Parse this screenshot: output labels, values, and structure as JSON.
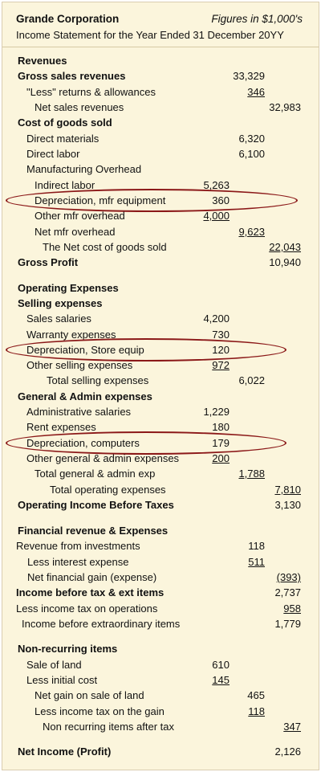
{
  "header": {
    "company": "Grande Corporation",
    "figures_note": "Figures in $1,000's",
    "title": "Income Statement for the Year Ended 31 December 20YY"
  },
  "rows": [
    {
      "label": "Revenues",
      "bold": true,
      "indent": 0
    },
    {
      "label": "Gross sales revenues",
      "bold": true,
      "indent": 0,
      "c2": "33,329"
    },
    {
      "label": "\"Less\" returns & allowances",
      "indent": 1,
      "c2": "346",
      "c2_underline": true
    },
    {
      "label": "Net sales revenues",
      "indent": 2,
      "c3": "32,983"
    },
    {
      "label": "Cost of goods sold",
      "bold": true,
      "indent": 0
    },
    {
      "label": "Direct materials",
      "indent": 1,
      "c2": "6,320"
    },
    {
      "label": "Direct labor",
      "indent": 1,
      "c2": "6,100"
    },
    {
      "label": "Manufacturing Overhead",
      "indent": 1
    },
    {
      "label": "Indirect labor",
      "indent": 2,
      "c1": "5,263"
    },
    {
      "label": "Depreciation, mfr equipment",
      "indent": 2,
      "c1": "360",
      "circled": true
    },
    {
      "label": "Other mfr overhead",
      "indent": 2,
      "c1": "4,000",
      "c1_underline": true
    },
    {
      "label": "Net mfr overhead",
      "indent": 2,
      "c2": "9,623",
      "c2_underline": true
    },
    {
      "label": "The Net cost of goods sold",
      "indent": 3,
      "c3": "22,043",
      "c3_underline": true
    },
    {
      "label": "Gross Profit",
      "bold": true,
      "indent": 0,
      "c3": "10,940"
    },
    {
      "label": "Operating Expenses",
      "bold": true,
      "indent": 0
    },
    {
      "label": "Selling expenses",
      "bold": true,
      "indent": 0
    },
    {
      "label": "Sales salaries",
      "indent": 1,
      "c1": "4,200"
    },
    {
      "label": "Warranty expenses",
      "indent": 1,
      "c1": "730"
    },
    {
      "label": "Depreciation, Store equip",
      "indent": 1,
      "c1": "120",
      "circled": true
    },
    {
      "label": "Other selling expenses",
      "indent": 1,
      "c1": "972",
      "c1_underline": true
    },
    {
      "label": "Total selling expenses",
      "indent": 4,
      "c2": "6,022"
    },
    {
      "label": "General & Admin expenses",
      "bold": true,
      "indent": 0
    },
    {
      "label": "Administrative salaries",
      "indent": 1,
      "c1": "1,229"
    },
    {
      "label": "Rent expenses",
      "indent": 1,
      "c1": "180"
    },
    {
      "label": "Depreciation, computers",
      "indent": 1,
      "c1": "179",
      "circled": true
    },
    {
      "label": "Other general & admin expenses",
      "indent": 1,
      "c1": "200",
      "c1_underline": true
    },
    {
      "label": "Total general & admin exp",
      "indent": 2,
      "c2": "1,788",
      "c2_underline": true
    },
    {
      "label": "Total operating expenses",
      "indent": 5,
      "c3": "7,810",
      "c3_underline": true
    },
    {
      "label": "Operating Income Before Taxes",
      "bold": true,
      "indent": 0,
      "c3": "3,130"
    },
    {
      "label": "Financial revenue & Expenses",
      "bold": true,
      "indent": 0
    },
    {
      "label": "Revenue from investments",
      "indent": 6,
      "c2": "118"
    },
    {
      "label": "Less interest expense",
      "indent": 7,
      "c2": "511",
      "c2_underline": true
    },
    {
      "label": "Net financial gain (expense)",
      "indent": 7,
      "c3": "(393)",
      "c3_underline": true
    },
    {
      "label": "Income before tax & ext items",
      "bold": true,
      "indent": 6,
      "c3": "2,737"
    },
    {
      "label": "Less income tax on operations",
      "indent": 6,
      "c3": "958",
      "c3_underline": true
    },
    {
      "label": "Income before extraordinary items",
      "indent": 8,
      "c3": "1,779"
    },
    {
      "label": "Non-recurring items",
      "bold": true,
      "indent": 0
    },
    {
      "label": "Sale of land",
      "indent": 1,
      "c1": "610"
    },
    {
      "label": "Less initial cost",
      "indent": 1,
      "c1": "145",
      "c1_underline": true
    },
    {
      "label": "Net gain on sale of land",
      "indent": 2,
      "c2": "465"
    },
    {
      "label": "Less income tax on the gain",
      "indent": 2,
      "c2": "118",
      "c2_underline": true
    },
    {
      "label": "Non recurring items after tax",
      "indent": 3,
      "c3": "347",
      "c3_underline": true
    },
    {
      "label": "Net Income (Profit)",
      "bold": true,
      "indent": 0,
      "c3": "2,126"
    }
  ]
}
